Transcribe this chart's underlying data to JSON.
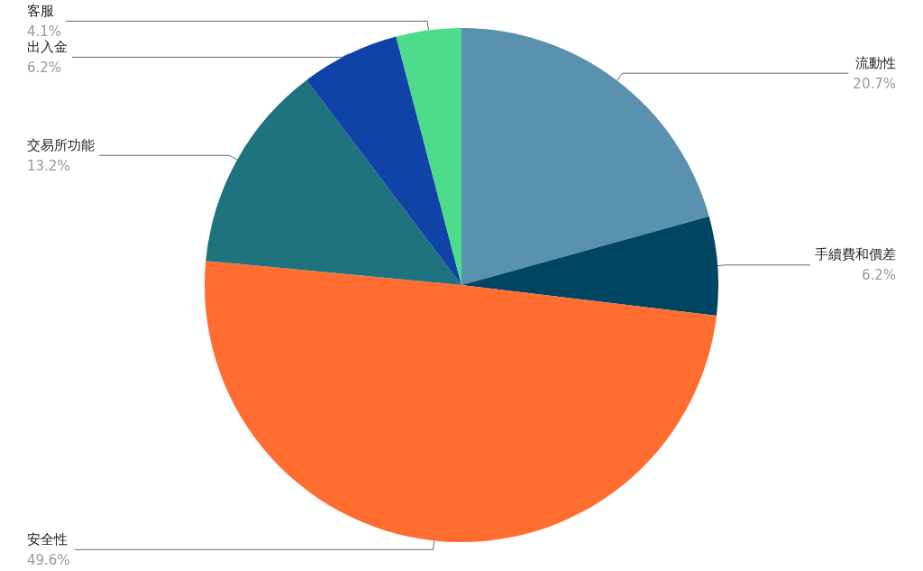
{
  "chart_data": {
    "type": "pie",
    "categories": [
      "流動性",
      "手續費和價差",
      "安全性",
      "交易所功能",
      "出入金",
      "客服"
    ],
    "values": [
      20.7,
      6.2,
      49.6,
      13.2,
      6.2,
      4.1
    ],
    "colors": [
      "#5a91ae",
      "#004562",
      "#ff6d31",
      "#1e737e",
      "#0f43a8",
      "#4cdc8b"
    ],
    "value_labels": [
      "20.7%",
      "6.2%",
      "49.6%",
      "13.2%",
      "6.2%",
      "4.1%"
    ],
    "legend": false
  }
}
